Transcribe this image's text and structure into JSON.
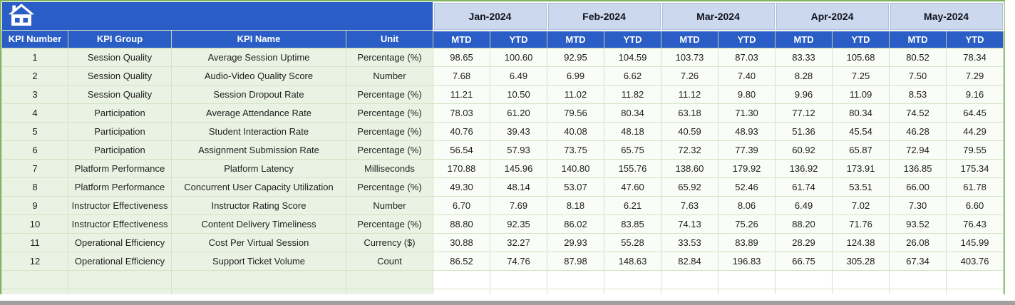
{
  "header": {
    "left_headers": [
      "KPI Number",
      "KPI Group",
      "KPI Name",
      "Unit"
    ],
    "months": [
      "Jan-2024",
      "Feb-2024",
      "Mar-2024",
      "Apr-2024",
      "May-2024"
    ],
    "sub_headers": [
      "MTD",
      "YTD"
    ],
    "home_icon": "home-icon"
  },
  "colors": {
    "header_blue": "#2a5dc5",
    "month_lavender": "#cbd8ed",
    "row_green": "#eaf3e3",
    "value_cell": "#fafcf7",
    "outer_border_green": "#83b263",
    "gridline_green": "#d2e4c4",
    "bottom_bar_gray": "#a0a0a0"
  },
  "empty_rows": 2,
  "rows": [
    {
      "num": "1",
      "group": "Session Quality",
      "name": "Average Session Uptime",
      "unit": "Percentage (%)",
      "values": [
        "98.65",
        "100.60",
        "92.95",
        "104.59",
        "103.73",
        "87.03",
        "83.33",
        "105.68",
        "80.52",
        "78.34"
      ]
    },
    {
      "num": "2",
      "group": "Session Quality",
      "name": "Audio-Video Quality Score",
      "unit": "Number",
      "values": [
        "7.68",
        "6.49",
        "6.99",
        "6.62",
        "7.26",
        "7.40",
        "8.28",
        "7.25",
        "7.50",
        "7.29"
      ]
    },
    {
      "num": "3",
      "group": "Session Quality",
      "name": "Session Dropout Rate",
      "unit": "Percentage (%)",
      "values": [
        "11.21",
        "10.50",
        "11.02",
        "11.82",
        "11.12",
        "9.80",
        "9.96",
        "11.09",
        "8.53",
        "9.16"
      ]
    },
    {
      "num": "4",
      "group": "Participation",
      "name": "Average Attendance Rate",
      "unit": "Percentage (%)",
      "values": [
        "78.03",
        "61.20",
        "79.56",
        "80.34",
        "63.18",
        "71.30",
        "77.12",
        "80.34",
        "74.52",
        "64.45"
      ]
    },
    {
      "num": "5",
      "group": "Participation",
      "name": "Student Interaction Rate",
      "unit": "Percentage (%)",
      "values": [
        "40.76",
        "39.43",
        "40.08",
        "48.18",
        "40.59",
        "48.93",
        "51.36",
        "45.54",
        "46.28",
        "44.29"
      ]
    },
    {
      "num": "6",
      "group": "Participation",
      "name": "Assignment Submission Rate",
      "unit": "Percentage (%)",
      "values": [
        "56.54",
        "57.93",
        "73.75",
        "65.75",
        "72.32",
        "77.39",
        "60.92",
        "65.87",
        "72.94",
        "79.55"
      ]
    },
    {
      "num": "7",
      "group": "Platform Performance",
      "name": "Platform Latency",
      "unit": "Milliseconds",
      "values": [
        "170.88",
        "145.96",
        "140.80",
        "155.76",
        "138.60",
        "179.92",
        "136.92",
        "173.91",
        "136.85",
        "175.34"
      ]
    },
    {
      "num": "8",
      "group": "Platform Performance",
      "name": "Concurrent User Capacity Utilization",
      "unit": "Percentage (%)",
      "values": [
        "49.30",
        "48.14",
        "53.07",
        "47.60",
        "65.92",
        "52.46",
        "61.74",
        "53.51",
        "66.00",
        "61.78"
      ]
    },
    {
      "num": "9",
      "group": "Instructor Effectiveness",
      "name": "Instructor Rating Score",
      "unit": "Number",
      "values": [
        "6.70",
        "7.69",
        "8.18",
        "6.21",
        "7.63",
        "8.06",
        "6.49",
        "7.02",
        "7.30",
        "6.60"
      ]
    },
    {
      "num": "10",
      "group": "Instructor Effectiveness",
      "name": "Content Delivery Timeliness",
      "unit": "Percentage (%)",
      "values": [
        "88.80",
        "92.35",
        "86.02",
        "83.85",
        "74.13",
        "75.26",
        "88.20",
        "71.76",
        "93.52",
        "76.43"
      ]
    },
    {
      "num": "11",
      "group": "Operational Efficiency",
      "name": "Cost Per Virtual Session",
      "unit": "Currency ($)",
      "values": [
        "30.88",
        "32.27",
        "29.93",
        "55.28",
        "33.53",
        "83.89",
        "28.29",
        "124.38",
        "26.08",
        "145.99"
      ]
    },
    {
      "num": "12",
      "group": "Operational Efficiency",
      "name": "Support Ticket Volume",
      "unit": "Count",
      "values": [
        "86.52",
        "74.76",
        "87.98",
        "148.63",
        "82.84",
        "196.83",
        "66.75",
        "305.28",
        "67.34",
        "403.76"
      ]
    }
  ]
}
